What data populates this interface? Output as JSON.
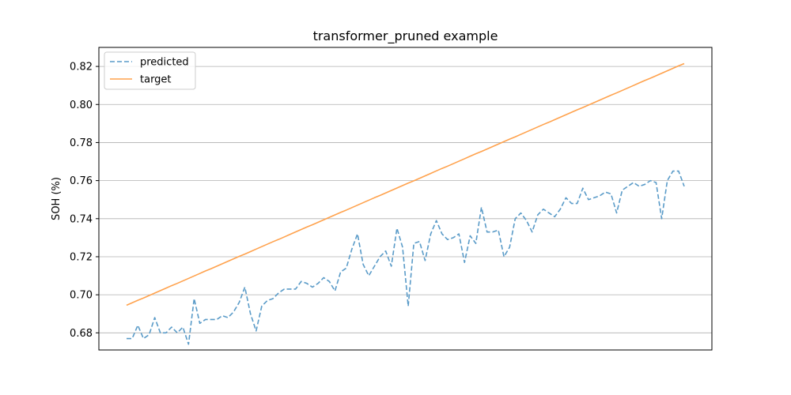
{
  "chart_data": {
    "type": "line",
    "title": "transformer_pruned example",
    "xlabel": "",
    "ylabel": "SOH (%)",
    "ylim": [
      0.671,
      0.83
    ],
    "yticks": [
      0.68,
      0.7,
      0.72,
      0.74,
      0.76,
      0.78,
      0.8,
      0.82
    ],
    "ytick_labels": [
      "0.68",
      "0.70",
      "0.72",
      "0.74",
      "0.76",
      "0.78",
      "0.80",
      "0.82"
    ],
    "xticks_visible": false,
    "grid": "y-major",
    "legend_position": "upper-left",
    "series": [
      {
        "name": "predicted",
        "style": "dashed",
        "color": "#5a9bc8",
        "values": [
          0.677,
          0.677,
          0.684,
          0.677,
          0.679,
          0.688,
          0.68,
          0.68,
          0.683,
          0.68,
          0.683,
          0.674,
          0.698,
          0.685,
          0.687,
          0.687,
          0.687,
          0.689,
          0.688,
          0.691,
          0.696,
          0.704,
          0.69,
          0.681,
          0.694,
          0.697,
          0.698,
          0.701,
          0.703,
          0.703,
          0.703,
          0.707,
          0.706,
          0.704,
          0.706,
          0.709,
          0.707,
          0.702,
          0.712,
          0.714,
          0.724,
          0.732,
          0.716,
          0.71,
          0.715,
          0.72,
          0.723,
          0.715,
          0.735,
          0.725,
          0.694,
          0.727,
          0.728,
          0.718,
          0.732,
          0.739,
          0.732,
          0.729,
          0.73,
          0.732,
          0.717,
          0.731,
          0.727,
          0.746,
          0.733,
          0.733,
          0.734,
          0.72,
          0.725,
          0.74,
          0.743,
          0.739,
          0.733,
          0.742,
          0.745,
          0.743,
          0.741,
          0.745,
          0.751,
          0.748,
          0.748,
          0.756,
          0.75,
          0.751,
          0.752,
          0.754,
          0.753,
          0.743,
          0.755,
          0.757,
          0.759,
          0.757,
          0.758,
          0.76,
          0.759,
          0.74,
          0.76,
          0.765,
          0.765,
          0.757
        ]
      },
      {
        "name": "target",
        "style": "solid",
        "color": "#ffa24d",
        "values": [
          0.6945,
          0.6958,
          0.6971,
          0.6983,
          0.6996,
          0.7009,
          0.7022,
          0.7035,
          0.7048,
          0.706,
          0.7073,
          0.7086,
          0.7099,
          0.7112,
          0.7125,
          0.7137,
          0.715,
          0.7163,
          0.7176,
          0.7189,
          0.7202,
          0.7214,
          0.7227,
          0.724,
          0.7253,
          0.7266,
          0.7279,
          0.7291,
          0.7304,
          0.7317,
          0.733,
          0.7343,
          0.7356,
          0.7368,
          0.7381,
          0.7394,
          0.7407,
          0.742,
          0.7433,
          0.7445,
          0.7458,
          0.7471,
          0.7484,
          0.7497,
          0.751,
          0.7522,
          0.7535,
          0.7548,
          0.7561,
          0.7574,
          0.7587,
          0.7599,
          0.7612,
          0.7625,
          0.7638,
          0.7651,
          0.7664,
          0.7676,
          0.7689,
          0.7702,
          0.7715,
          0.7728,
          0.7741,
          0.7753,
          0.7766,
          0.7779,
          0.7792,
          0.7805,
          0.7818,
          0.783,
          0.7843,
          0.7856,
          0.7869,
          0.7882,
          0.7895,
          0.7907,
          0.792,
          0.7933,
          0.7946,
          0.7959,
          0.7972,
          0.7984,
          0.7997,
          0.801,
          0.8023,
          0.8036,
          0.8049,
          0.8061,
          0.8074,
          0.8087,
          0.81,
          0.8113,
          0.8126,
          0.8138,
          0.8151,
          0.8164,
          0.8177,
          0.819,
          0.8203,
          0.8215
        ]
      }
    ]
  }
}
